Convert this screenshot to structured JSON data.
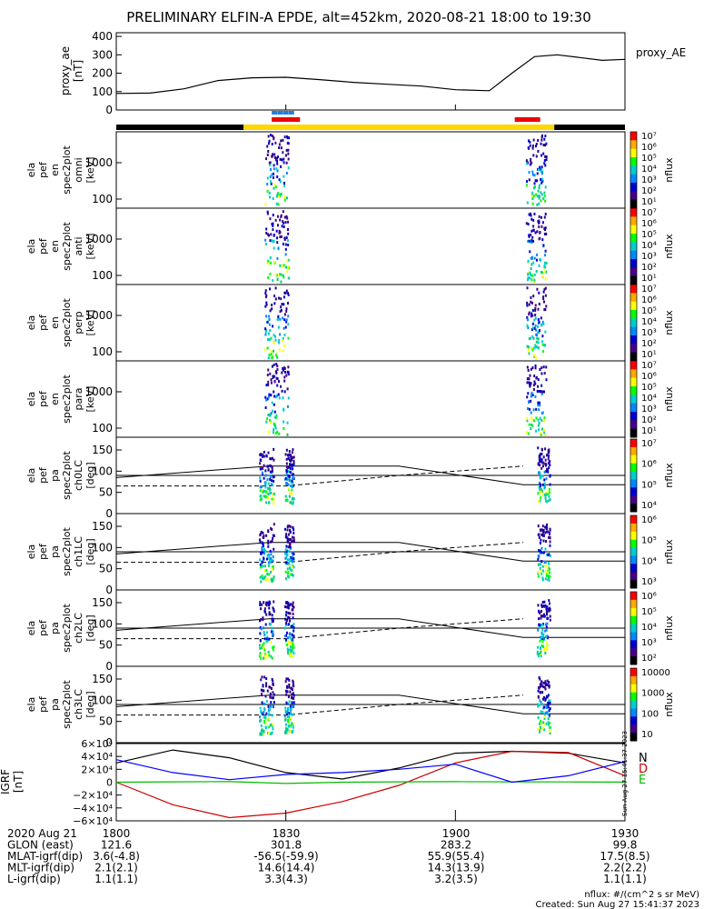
{
  "figure": {
    "title": "PRELIMINARY ELFIN-A EPDE, alt=452km, 2020-08-21 18:00 to 19:30",
    "created": "Created: Sun Aug 27 15:41:37 2023",
    "flux_units": "nflux: #/(cm^2 s sr MeV)",
    "side_stamp": "Sun Aug 27 15:41:37 2023"
  },
  "chart_data": [
    {
      "panel": "proxy_ae",
      "type": "line",
      "ylabel": [
        "proxy_ae",
        "[nT]"
      ],
      "legend": "proxy_AE",
      "yticks": [
        "400",
        "300",
        "200",
        "100",
        "0"
      ],
      "ylim": [
        0,
        420
      ],
      "x": [
        0,
        6,
        12,
        18,
        24,
        30,
        36,
        42,
        48,
        54,
        60,
        66,
        70,
        74,
        78,
        82,
        86,
        90
      ],
      "values": [
        90,
        92,
        115,
        160,
        175,
        178,
        165,
        150,
        140,
        130,
        110,
        105,
        200,
        290,
        300,
        285,
        270,
        275
      ]
    },
    {
      "panel": "status_bars",
      "type": "bar",
      "science_zones": [
        [
          27.5,
          32.5
        ],
        [
          70.5,
          75
        ]
      ],
      "fgm_blocks": [
        27.5,
        28.5,
        29.5,
        30.5
      ],
      "yellow_span": [
        22.5,
        77.5
      ]
    },
    {
      "panel": "energy_spectra",
      "type": "heatmap",
      "rows": [
        {
          "label": [
            "ela",
            "pef",
            "en",
            "spec2plot",
            "omni",
            "[keV]"
          ],
          "cbar": [
            "10⁷",
            "10⁶",
            "10⁵",
            "10⁴",
            "10³",
            "10²",
            "10¹"
          ]
        },
        {
          "label": [
            "ela",
            "pef",
            "en",
            "spec2plot",
            "anti",
            "[keV]"
          ],
          "cbar": [
            "10⁷",
            "10⁶",
            "10⁵",
            "10⁴",
            "10³",
            "10²",
            "10¹"
          ]
        },
        {
          "label": [
            "ela",
            "pef",
            "en",
            "spec2plot",
            "perp",
            "[keV]"
          ],
          "cbar": [
            "10⁷",
            "10⁶",
            "10⁵",
            "10⁴",
            "10³",
            "10²",
            "10¹"
          ]
        },
        {
          "label": [
            "ela",
            "pef",
            "en",
            "spec2plot",
            "para",
            "[keV]"
          ],
          "cbar": [
            "10⁷",
            "10⁶",
            "10⁵",
            "10⁴",
            "10³",
            "10²",
            "10¹"
          ]
        }
      ],
      "yticks": [
        "1000",
        "100"
      ],
      "cbar_label": "nflux"
    },
    {
      "panel": "pitch_angle",
      "type": "heatmap",
      "rows": [
        {
          "label": [
            "ela",
            "pef",
            "pa",
            "spec2plot",
            "ch0LC",
            "[deg]"
          ],
          "cbar": [
            "10⁷",
            "10⁶",
            "10⁵",
            "10⁴"
          ]
        },
        {
          "label": [
            "ela",
            "pef",
            "pa",
            "spec2plot",
            "ch1LC",
            "[deg]"
          ],
          "cbar": [
            "10⁶",
            "10⁵",
            "10⁴",
            "10³"
          ]
        },
        {
          "label": [
            "ela",
            "pef",
            "pa",
            "spec2plot",
            "ch2LC",
            "[deg]"
          ],
          "cbar": [
            "10⁶",
            "10⁵",
            "10⁴",
            "10³",
            "10²"
          ]
        },
        {
          "label": [
            "ela",
            "pef",
            "pa",
            "spec2plot",
            "ch3LC",
            "[deg]"
          ],
          "cbar": [
            "10000",
            "1000",
            "100",
            "10"
          ]
        }
      ],
      "yticks": [
        "150",
        "100",
        "50",
        "0"
      ],
      "cbar_label": "nflux"
    },
    {
      "panel": "igrf",
      "type": "line",
      "ylabel": [
        "IGRF",
        "[nT]"
      ],
      "yticks": [
        "6×10⁴",
        "4×10⁴",
        "2×10⁴",
        "0",
        "−2×10⁴",
        "−4×10⁴",
        "−6×10⁴"
      ],
      "ylim": [
        -60000,
        60000
      ],
      "x": [
        0,
        10,
        20,
        30,
        40,
        50,
        60,
        70,
        80,
        90
      ],
      "series": [
        {
          "name": "N",
          "color": "#000000",
          "values": [
            30000,
            50000,
            38000,
            15000,
            5000,
            22000,
            45000,
            48000,
            45000,
            30000
          ]
        },
        {
          "name": "D",
          "color": "#cc0000",
          "values": [
            0,
            -35000,
            -55000,
            -48000,
            -30000,
            -5000,
            30000,
            48000,
            46000,
            10000
          ]
        },
        {
          "name": "E",
          "color": "#00bb00",
          "values": [
            0,
            500,
            1000,
            -2000,
            0,
            500,
            800,
            600,
            400,
            200
          ]
        },
        {
          "name": "",
          "color": "#0000ff",
          "values": [
            35000,
            15000,
            4000,
            12000,
            15000,
            20000,
            28000,
            0,
            10000,
            32000
          ]
        }
      ]
    }
  ],
  "x_axis": {
    "ticks": [
      "1800",
      "1830",
      "1900",
      "1930"
    ],
    "rows": [
      {
        "label": "2020 Aug 21",
        "values": [
          "1800",
          "1830",
          "1900",
          "1930"
        ]
      },
      {
        "label": "GLON (east)",
        "values": [
          "121.6",
          "301.8",
          "283.2",
          "99.8"
        ]
      },
      {
        "label": "MLAT-igrf(dip)",
        "values": [
          "3.6(-4.8)",
          "-56.5(-59.9)",
          "55.9(55.4)",
          "17.5(8.5)"
        ]
      },
      {
        "label": "MLT-igrf(dip)",
        "values": [
          "2.1(2.1)",
          "14.6(14.4)",
          "14.3(13.9)",
          "2.2(2.2)"
        ]
      },
      {
        "label": "L-igrf(dip)",
        "values": [
          "1.1(1.1)",
          "3.3(4.3)",
          "3.2(3.5)",
          "1.1(1.1)"
        ]
      }
    ]
  }
}
